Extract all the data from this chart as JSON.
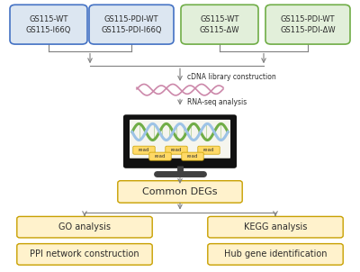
{
  "bg_color": "#ffffff",
  "box1_text": "GS115-WT\nGS115-I66Q",
  "box2_text": "GS115-PDI-WT\nGS115-PDI-I66Q",
  "box3_text": "GS115-WT\nGS115-ΔW",
  "box4_text": "GS115-PDI-WT\nGS115-PDI-ΔW",
  "box1_color": "#dce6f1",
  "box2_color": "#dce6f1",
  "box3_color": "#e2efda",
  "box4_color": "#e2efda",
  "box1_edge": "#4472c4",
  "box2_edge": "#4472c4",
  "box3_edge": "#70ad47",
  "box4_edge": "#70ad47",
  "cdna_label": "cDNA library construction",
  "rna_label": "RNA-seq analysis",
  "common_degs_text": "Common DEGs",
  "go_text": "GO analysis",
  "kegg_text": "KEGG analysis",
  "ppi_text": "PPI network construction",
  "hub_text": "Hub gene identification",
  "yellow_fill": "#fff2cc",
  "yellow_edge": "#c8a000",
  "arrow_color": "#808080",
  "wavy_color": "#cc88aa",
  "dna_green": "#70ad47",
  "dna_blue": "#9dc3e6",
  "read_fill": "#ffd966",
  "read_edge": "#c8a000",
  "screen_border": "#1a1a1a",
  "screen_inner": "#f5f5f0",
  "stand_color": "#404040"
}
